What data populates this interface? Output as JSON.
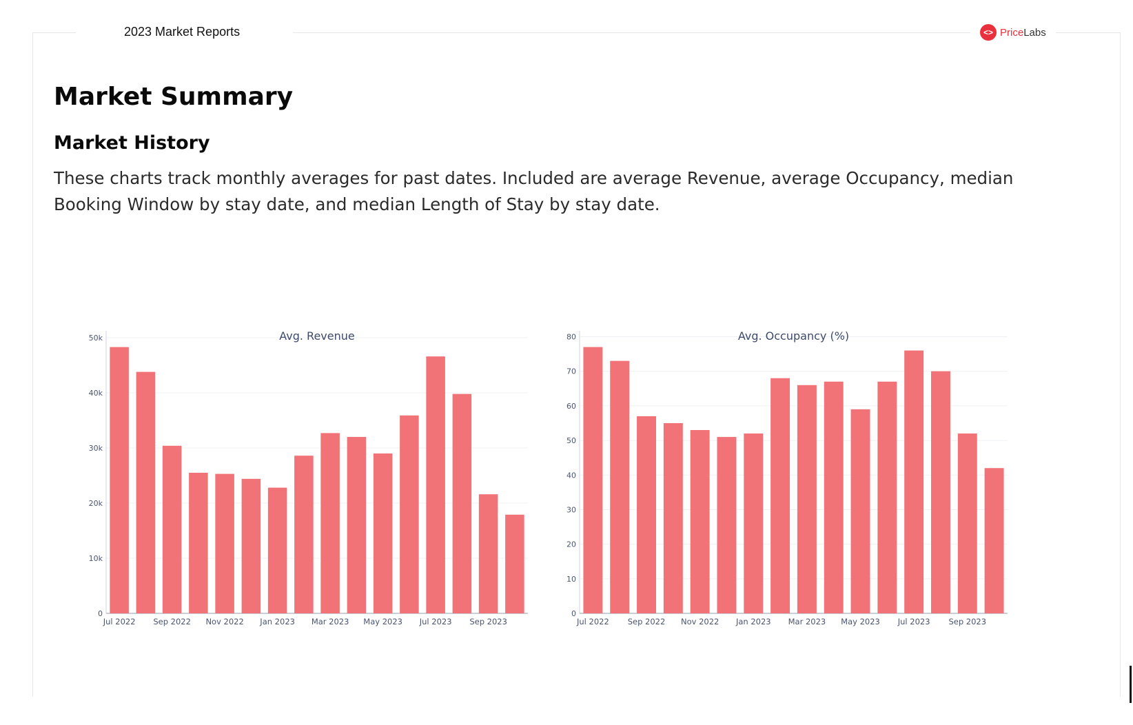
{
  "header": {
    "report_title": "2023 Market Reports",
    "logo": {
      "icon": "code-brackets-icon",
      "brand_part1": "Price",
      "brand_part2": "Labs",
      "brand_color": "#e8313c"
    }
  },
  "main": {
    "page_heading": "Market Summary",
    "section_heading": "Market History",
    "intro": "These charts track monthly averages for past dates. Included are average Revenue, average Occupancy, median Booking Window by stay date, and median Length of Stay by stay date."
  },
  "chart_data": [
    {
      "type": "bar",
      "title": "Avg. Revenue",
      "xlabel": "",
      "ylabel": "",
      "categories": [
        "Jul 2022",
        "Aug 2022",
        "Sep 2022",
        "Oct 2022",
        "Nov 2022",
        "Dec 2022",
        "Jan 2023",
        "Feb 2023",
        "Mar 2023",
        "Apr 2023",
        "May 2023",
        "Jun 2023",
        "Jul 2023",
        "Aug 2023",
        "Sep 2023",
        "Oct 2023"
      ],
      "values": [
        48300,
        43800,
        30400,
        25500,
        25300,
        24400,
        22800,
        28600,
        32700,
        32000,
        29000,
        35900,
        46600,
        39800,
        21600,
        17900
      ],
      "x_tick_labels": [
        "Jul 2022",
        "Sep 2022",
        "Nov 2022",
        "Jan 2023",
        "Mar 2023",
        "May 2023",
        "Jul 2023",
        "Sep 2023"
      ],
      "y_ticks": [
        0,
        10000,
        20000,
        30000,
        40000,
        50000
      ],
      "y_tick_labels": [
        "0",
        "10k",
        "20k",
        "30k",
        "40k",
        "50k"
      ],
      "ylim": [
        0,
        50500
      ],
      "grid": true,
      "bar_color": "#f27377"
    },
    {
      "type": "bar",
      "title": "Avg. Occupancy (%)",
      "xlabel": "",
      "ylabel": "",
      "categories": [
        "Jul 2022",
        "Aug 2022",
        "Sep 2022",
        "Oct 2022",
        "Nov 2022",
        "Dec 2022",
        "Jan 2023",
        "Feb 2023",
        "Mar 2023",
        "Apr 2023",
        "May 2023",
        "Jun 2023",
        "Jul 2023",
        "Aug 2023",
        "Sep 2023",
        "Oct 2023"
      ],
      "values": [
        77,
        73,
        57,
        55,
        53,
        51,
        52,
        68,
        66,
        67,
        59,
        67,
        76,
        70,
        52,
        42
      ],
      "x_tick_labels": [
        "Jul 2022",
        "Sep 2022",
        "Nov 2022",
        "Jan 2023",
        "Mar 2023",
        "May 2023",
        "Jul 2023",
        "Sep 2023"
      ],
      "y_ticks": [
        0,
        10,
        20,
        30,
        40,
        50,
        60,
        70,
        80
      ],
      "y_tick_labels": [
        "0",
        "10",
        "20",
        "30",
        "40",
        "50",
        "60",
        "70",
        "80"
      ],
      "ylim": [
        0,
        80.5
      ],
      "grid": true,
      "bar_color": "#f27377"
    }
  ]
}
